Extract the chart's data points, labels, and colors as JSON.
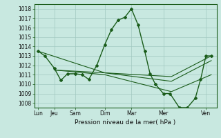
{
  "title": "Pression niveau de la mer( hPa )",
  "bg_color": "#c8e8e0",
  "grid_color": "#a0c8c0",
  "line_color": "#1a5c1a",
  "ylim": [
    1007.5,
    1018.5
  ],
  "yticks": [
    1008,
    1009,
    1010,
    1011,
    1012,
    1013,
    1014,
    1015,
    1016,
    1017,
    1018
  ],
  "day_labels": [
    "Lun",
    "Jeu",
    "Sam",
    "Dim",
    "Mar",
    "Mer",
    "Ven"
  ],
  "day_positions": [
    0.0,
    0.6,
    1.4,
    2.5,
    3.5,
    4.7,
    6.3
  ],
  "xlim": [
    -0.15,
    6.7
  ],
  "main_series_x": [
    0.0,
    0.25,
    0.6,
    0.85,
    1.1,
    1.4,
    1.65,
    1.9,
    2.2,
    2.5,
    2.75,
    3.0,
    3.25,
    3.5,
    3.75,
    4.0,
    4.2,
    4.4,
    4.7,
    4.95,
    5.3,
    5.6,
    5.9,
    6.1,
    6.3,
    6.5
  ],
  "main_series_y": [
    1013.5,
    1013.0,
    1011.7,
    1010.4,
    1011.1,
    1011.1,
    1011.0,
    1010.5,
    1012.0,
    1014.2,
    1015.8,
    1016.8,
    1017.1,
    1018.0,
    1016.3,
    1013.5,
    1011.1,
    1010.0,
    1009.0,
    1009.0,
    1007.5,
    1007.5,
    1008.5,
    1010.5,
    1013.0,
    1013.0
  ],
  "trend1_x": [
    0.0,
    2.5,
    5.0,
    6.5
  ],
  "trend1_y": [
    1013.5,
    1011.2,
    1010.8,
    1013.0
  ],
  "trend2_x": [
    0.6,
    2.5,
    5.0,
    6.5
  ],
  "trend2_y": [
    1011.5,
    1011.2,
    1010.3,
    1012.5
  ],
  "trend3_x": [
    0.6,
    2.5,
    5.0,
    6.5
  ],
  "trend3_y": [
    1011.5,
    1011.0,
    1009.2,
    1011.0
  ]
}
